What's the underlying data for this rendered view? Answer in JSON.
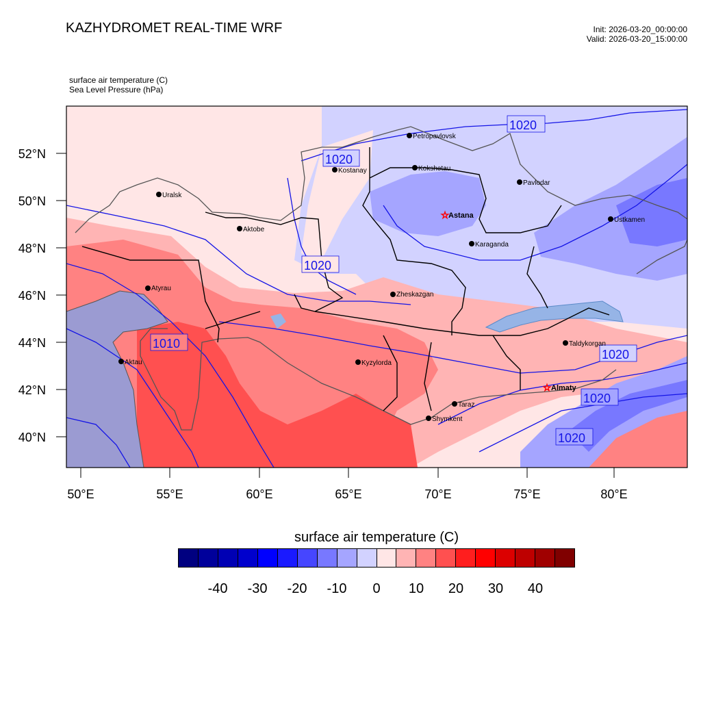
{
  "header": {
    "title": "KAZHYDROMET REAL-TIME WRF",
    "init": "Init: 2026-03-20_00:00:00",
    "valid": "Valid: 2026-03-20_15:00:00"
  },
  "subtitle": {
    "line1": "surface air temperature   (C)",
    "line2": "Sea Level Pressure   (hPa)"
  },
  "axes": {
    "lon_ticks": [
      "50°E",
      "55°E",
      "60°E",
      "65°E",
      "70°E",
      "75°E",
      "80°E"
    ],
    "lat_ticks": [
      "52°N",
      "50°N",
      "48°N",
      "46°N",
      "44°N",
      "42°N",
      "40°N"
    ]
  },
  "cities": [
    {
      "name": "Petropavlovsk",
      "bold": false
    },
    {
      "name": "Kostanay",
      "bold": false
    },
    {
      "name": "Kokshetau",
      "bold": false
    },
    {
      "name": "Pavlodar",
      "bold": false
    },
    {
      "name": "Uralsk",
      "bold": false
    },
    {
      "name": "Aktobe",
      "bold": false
    },
    {
      "name": "Astana",
      "bold": true
    },
    {
      "name": "Ustkamen",
      "bold": false
    },
    {
      "name": "Karaganda",
      "bold": false
    },
    {
      "name": "Atyrau",
      "bold": false
    },
    {
      "name": "Zheskazgan",
      "bold": false
    },
    {
      "name": "Aktau",
      "bold": false
    },
    {
      "name": "Kyzylorda",
      "bold": false
    },
    {
      "name": "Taldykorgan",
      "bold": false
    },
    {
      "name": "Almaty",
      "bold": true
    },
    {
      "name": "Taraz",
      "bold": false
    },
    {
      "name": "Shymkent",
      "bold": false
    }
  ],
  "isobar_labels": [
    "1020",
    "1020",
    "1020",
    "1010",
    "1020",
    "1020",
    "1020"
  ],
  "colorbar": {
    "title": "surface air temperature  (C)",
    "labels": [
      "-40",
      "-30",
      "-20",
      "-10",
      "0",
      "10",
      "20",
      "30",
      "40"
    ],
    "colors": [
      "#000080",
      "#00009b",
      "#0000b4",
      "#0000cd",
      "#0000ff",
      "#1a1aff",
      "#4646ff",
      "#7878ff",
      "#a5a5ff",
      "#d2d2ff",
      "#ffe6e6",
      "#ffb4b4",
      "#ff8282",
      "#ff5050",
      "#ff1e1e",
      "#ff0000",
      "#dc0000",
      "#be0000",
      "#a00000",
      "#800000"
    ]
  },
  "palette": {
    "isobar": "#1414e6",
    "border_black": "#000000",
    "border_gray": "#555555",
    "sea": "#9b9bd2",
    "lake": "#96b4e6"
  }
}
